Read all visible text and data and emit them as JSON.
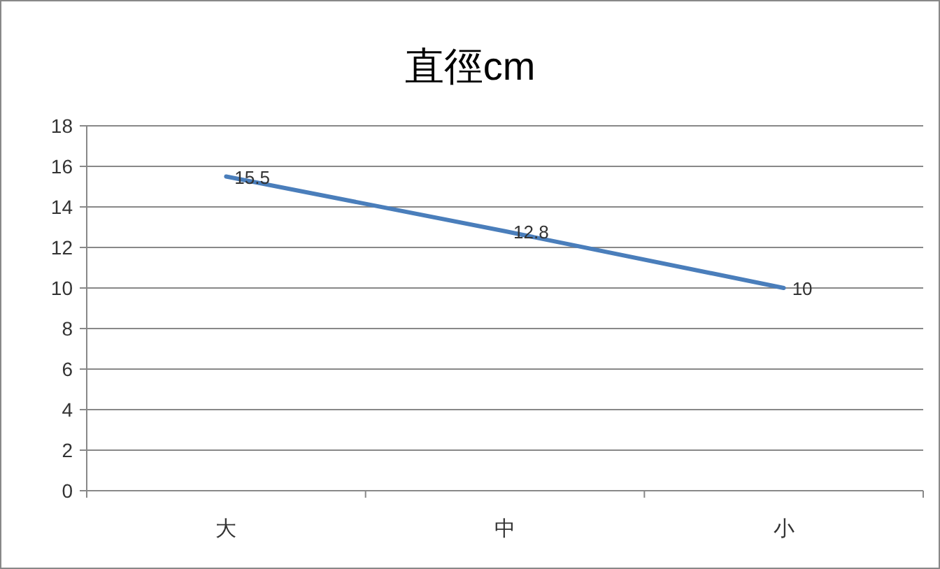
{
  "chart_data": {
    "type": "line",
    "title": "直徑cm",
    "categories": [
      "大",
      "中",
      "小"
    ],
    "series": [
      {
        "color": "#4a7ebb",
        "values": [
          15.5,
          12.8,
          10
        ]
      }
    ],
    "ylim": [
      0,
      18
    ],
    "yticks": [
      0,
      2,
      4,
      6,
      8,
      10,
      12,
      14,
      16,
      18
    ],
    "grid": "y",
    "data_labels": true,
    "marker": "none"
  }
}
